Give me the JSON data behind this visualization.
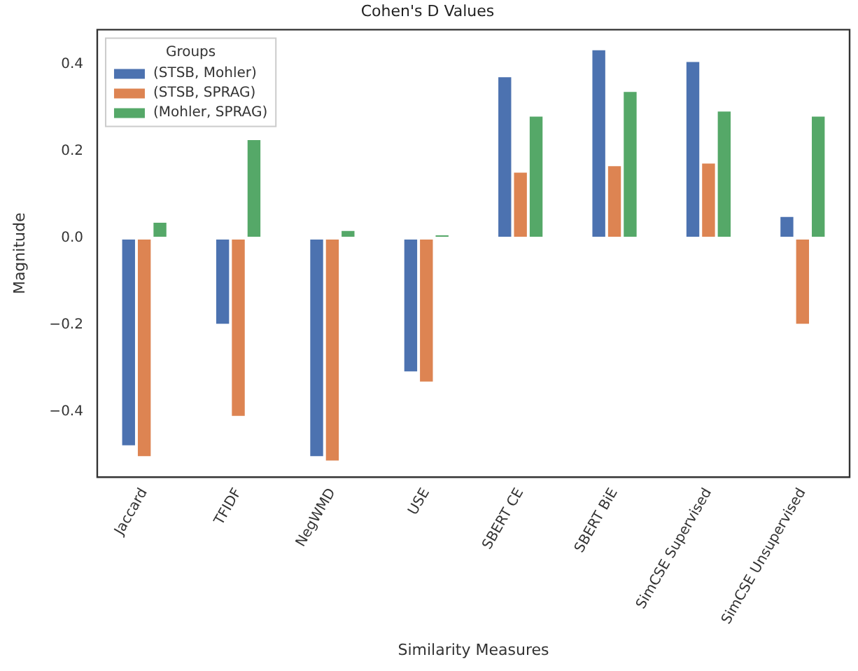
{
  "chart_data": {
    "type": "bar",
    "title": "Cohen's D Values",
    "xlabel": "Similarity Measures",
    "ylabel": "Magnitude",
    "legend_title": "Groups",
    "legend": "top left",
    "grid": false,
    "categories": [
      "Jaccard",
      "TFIDF",
      "NegWMD",
      "USE",
      "SBERT CE",
      "SBERT BiE",
      "SimCSE Supervised",
      "SimCSE Unsupervised"
    ],
    "ylim": [
      -0.55,
      0.48
    ],
    "yticks": [
      {
        "value": -0.4,
        "label": "−0.4"
      },
      {
        "value": -0.2,
        "label": "−0.2"
      },
      {
        "value": 0,
        "label": "0.0"
      },
      {
        "value": 0.2,
        "label": "0.2"
      },
      {
        "value": 0.4,
        "label": "0.4"
      }
    ],
    "series": [
      {
        "name": "(STSB, Mohler)",
        "color": "#4c72b0",
        "values": [
          -0.48,
          -0.2,
          -0.505,
          -0.31,
          0.374,
          0.436,
          0.409,
          0.052
        ]
      },
      {
        "name": "(STSB, SPRAG)",
        "color": "#dd8452",
        "values": [
          -0.505,
          -0.412,
          -0.515,
          -0.333,
          0.154,
          0.169,
          0.175,
          -0.2
        ]
      },
      {
        "name": "(Mohler, SPRAG)",
        "color": "#55a868",
        "values": [
          0.039,
          0.229,
          0.02,
          0.01,
          0.283,
          0.34,
          0.295,
          0.283
        ]
      }
    ]
  }
}
